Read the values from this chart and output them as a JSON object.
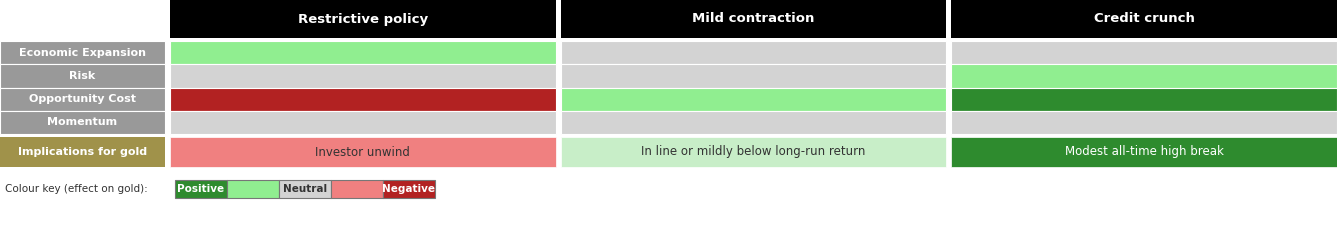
{
  "scenario_headers": [
    "Restrictive policy",
    "Mild contraction",
    "Credit crunch"
  ],
  "row_labels": [
    "Economic Expansion",
    "Risk",
    "Opportunity Cost",
    "Momentum"
  ],
  "implication_labels": [
    "Investor unwind",
    "In line or mildly below long-run return",
    "Modest all-time high break"
  ],
  "implication_colors": [
    "#F08080",
    "#C8EEC8",
    "#2E8B2E"
  ],
  "implication_text_colors": [
    "#333333",
    "#333333",
    "#ffffff"
  ],
  "label_col_color": "#999999",
  "label_col_text_color": "#ffffff",
  "implication_label_col_color": "#A0924A",
  "header_bg_color": "#000000",
  "header_text_color": "#ffffff",
  "cell_colors": {
    "Restrictive policy": {
      "Economic Expansion": "#90EE90",
      "Risk": "#D3D3D3",
      "Opportunity Cost": "#B22222",
      "Momentum": "#D3D3D3"
    },
    "Mild contraction": {
      "Economic Expansion": "#D3D3D3",
      "Risk": "#D3D3D3",
      "Opportunity Cost": "#90EE90",
      "Momentum": "#D3D3D3"
    },
    "Credit crunch": {
      "Economic Expansion": "#D3D3D3",
      "Risk": "#90EE90",
      "Opportunity Cost": "#2E8B2E",
      "Momentum": "#D3D3D3"
    }
  },
  "color_key_label": "Colour key (effect on gold):",
  "color_key_items": [
    {
      "label": "Positive",
      "color": "#2E8B2E",
      "text_color": "#ffffff"
    },
    {
      "label": "",
      "color": "#90EE90",
      "text_color": "#ffffff"
    },
    {
      "label": "Neutral",
      "color": "#D3D3D3",
      "text_color": "#333333"
    },
    {
      "label": "",
      "color": "#F08080",
      "text_color": "#ffffff"
    },
    {
      "label": "Negative",
      "color": "#B22222",
      "text_color": "#ffffff"
    }
  ],
  "figw": 13.37,
  "figh": 2.34,
  "dpi": 100
}
